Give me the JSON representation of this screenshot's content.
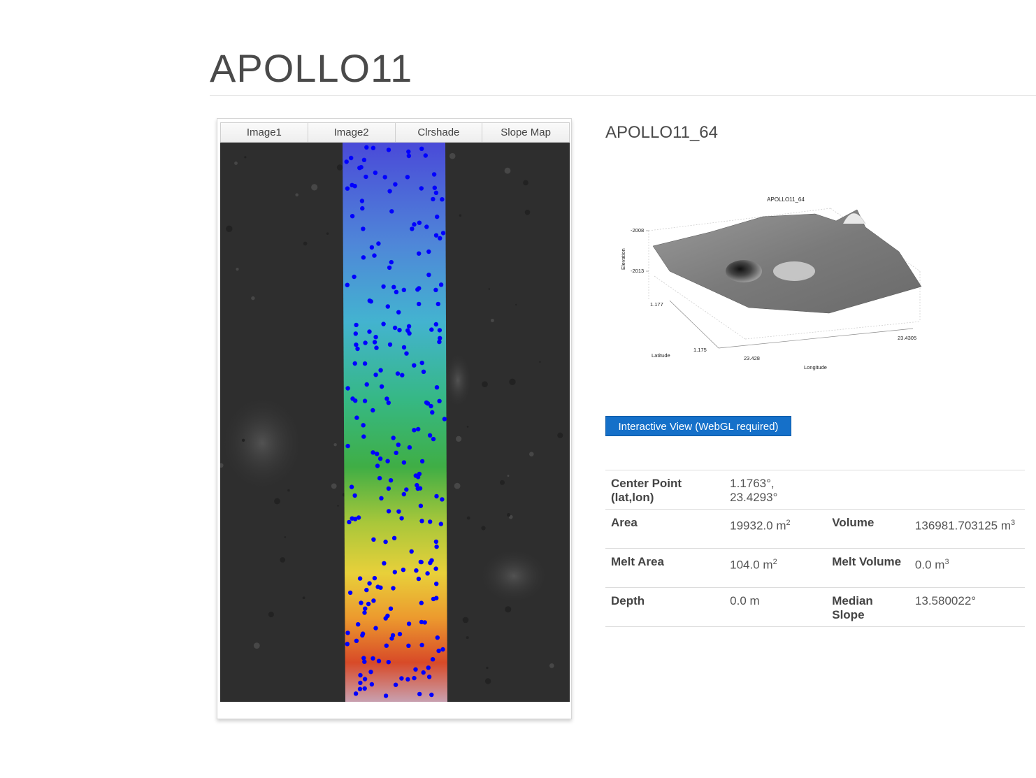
{
  "page": {
    "title": "APOLLO11"
  },
  "viewer": {
    "tabs": [
      {
        "label": "Image1"
      },
      {
        "label": "Image2"
      },
      {
        "label": "Clrshade"
      },
      {
        "label": "Slope Map"
      }
    ],
    "active_tab": "Clrshade"
  },
  "detail": {
    "title": "APOLLO11_64",
    "plot": {
      "title": "APOLLO11_64",
      "z_label": "Elevation",
      "z_ticks": [
        "-2008",
        "-2013"
      ],
      "y_label": "Latitude",
      "y_ticks": [
        "1.177",
        "1.175"
      ],
      "x_label": "Longitude",
      "x_ticks": [
        "23.428",
        "23.4305"
      ]
    },
    "button_label": "Interactive View (WebGL required)",
    "table": {
      "center_label": "Center Point (lat,lon)",
      "center_value": "1.1763°, 23.4293°",
      "area_label": "Area",
      "area_value": "19932.0 m",
      "area_unit_sup": "2",
      "volume_label": "Volume",
      "volume_value": "136981.703125 m",
      "volume_unit_sup": "3",
      "melt_area_label": "Melt Area",
      "melt_area_value": "104.0 m",
      "melt_area_unit_sup": "2",
      "melt_volume_label": "Melt Volume",
      "melt_volume_value": "0.0 m",
      "melt_volume_unit_sup": "3",
      "depth_label": "Depth",
      "depth_value": "0.0 m",
      "median_slope_label": "Median Slope",
      "median_slope_value": "13.580022°"
    }
  },
  "colors": {
    "button": "#1570c9",
    "marker_dots": "#0000ff",
    "elevation_low": "#3040d0",
    "elevation_high": "#d83020"
  }
}
